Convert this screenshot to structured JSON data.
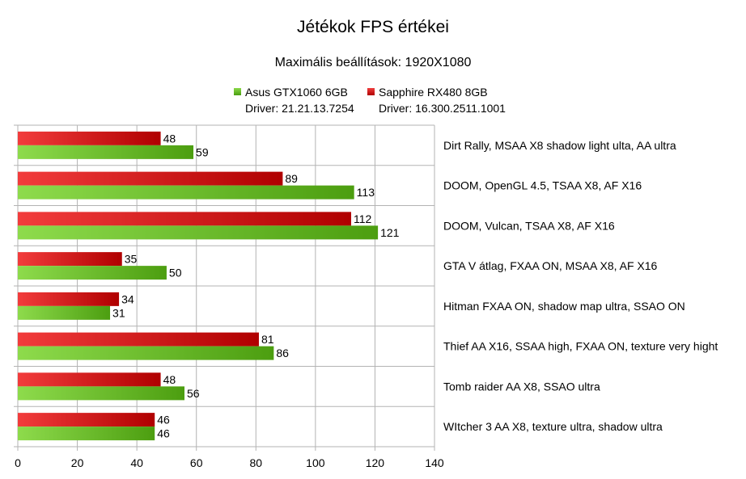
{
  "chart_data": {
    "type": "bar",
    "orientation": "horizontal",
    "title": "Jétékok FPS értékei",
    "subtitle": "Maximális beállítások: 1920X1080",
    "categories": [
      "Dirt Rally, MSAA X8 shadow light ulta, AA ultra",
      "DOOM, OpenGL 4.5, TSAA X8, AF X16",
      "DOOM, Vulcan, TSAA X8, AF X16",
      "GTA V átlag, FXAA ON, MSAA X8, AF X16",
      "Hitman FXAA ON, shadow map ultra, SSAO ON",
      "Thief AA X16, SSAA high, FXAA ON, texture very hight",
      "Tomb raider AA X8, SSAO ultra",
      "WItcher 3 AA X8, texture ultra, shadow ultra"
    ],
    "series": [
      {
        "name": "Sapphire RX480 8GB",
        "subtitle": "Driver: 16.300.2511.1001",
        "color": "#cc0000",
        "values": [
          48,
          89,
          112,
          35,
          34,
          81,
          48,
          46
        ]
      },
      {
        "name": "Asus GTX1060 6GB",
        "subtitle": "Driver: 21.21.13.7254",
        "color": "#55aa11",
        "values": [
          59,
          113,
          121,
          50,
          31,
          86,
          56,
          46
        ]
      }
    ],
    "legend_order": [
      1,
      0
    ],
    "xlim": [
      0,
      140
    ],
    "xticks": [
      0,
      20,
      40,
      60,
      80,
      100,
      120,
      140
    ],
    "grid": true,
    "legend_position": "top"
  }
}
